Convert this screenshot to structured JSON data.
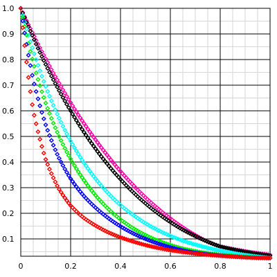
{
  "chart_data": {
    "type": "scatter",
    "title": "",
    "xlabel": "",
    "ylabel": "",
    "xlim": [
      0,
      1
    ],
    "ylim": [
      0.02,
      1.0
    ],
    "grid": true,
    "x_ticks": [
      0,
      0.2,
      0.4,
      0.6,
      0.8,
      1
    ],
    "x_tick_labels": [
      "0",
      "0.2",
      "0.4",
      "0.6",
      "0.8",
      "1"
    ],
    "y_ticks": [
      0.1,
      0.2,
      0.3,
      0.4,
      0.5,
      0.6,
      0.7,
      0.8,
      0.9,
      1.0
    ],
    "y_tick_labels": [
      "0.1",
      "0.2",
      "0.3",
      "0.4",
      "0.5",
      "0.6",
      "0.7",
      "0.8",
      "0.9",
      "1.0"
    ],
    "x": [
      0,
      0.05,
      0.1,
      0.15,
      0.2,
      0.25,
      0.3,
      0.35,
      0.4,
      0.45,
      0.5,
      0.55,
      0.6,
      0.65,
      0.7,
      0.75,
      0.8,
      0.85,
      0.9,
      0.95,
      1.0
    ],
    "series": [
      {
        "color": "#ff00aa",
        "values": [
          1.0,
          0.898,
          0.803,
          0.714,
          0.632,
          0.556,
          0.487,
          0.423,
          0.364,
          0.311,
          0.262,
          0.219,
          0.18,
          0.145,
          0.115,
          0.089,
          0.0704,
          0.0604,
          0.0517,
          0.0442,
          0.0378
        ]
      },
      {
        "color": "#000000",
        "values": [
          1.0,
          0.886,
          0.781,
          0.686,
          0.6,
          0.522,
          0.452,
          0.389,
          0.333,
          0.283,
          0.239,
          0.2,
          0.166,
          0.136,
          0.111,
          0.089,
          0.0704,
          0.059,
          0.0494,
          0.0414,
          0.0347
        ]
      },
      {
        "color": "#00ffff",
        "values": [
          1.0,
          0.834,
          0.695,
          0.579,
          0.482,
          0.402,
          0.335,
          0.279,
          0.232,
          0.194,
          0.161,
          0.134,
          0.112,
          0.093,
          0.078,
          0.065,
          0.054,
          0.045,
          0.0375,
          0.0312,
          0.026
        ]
      },
      {
        "color": "#00ee00",
        "values": [
          1.0,
          0.787,
          0.63,
          0.508,
          0.412,
          0.334,
          0.27,
          0.218,
          0.176,
          0.142,
          0.115,
          0.093,
          0.076,
          0.062,
          0.052,
          0.044,
          0.038,
          0.034,
          0.03,
          0.027,
          0.025
        ]
      },
      {
        "color": "#0000ff",
        "values": [
          1.0,
          0.72,
          0.545,
          0.422,
          0.335,
          0.271,
          0.222,
          0.182,
          0.149,
          0.122,
          0.1,
          0.082,
          0.067,
          0.055,
          0.046,
          0.04,
          0.035,
          0.031,
          0.028,
          0.026,
          0.025
        ]
      },
      {
        "color": "#ff0000",
        "values": [
          1.0,
          0.6,
          0.41,
          0.3,
          0.23,
          0.184,
          0.152,
          0.126,
          0.106,
          0.09,
          0.076,
          0.065,
          0.056,
          0.049,
          0.043,
          0.038,
          0.034,
          0.031,
          0.028,
          0.026,
          0.025
        ]
      }
    ]
  }
}
